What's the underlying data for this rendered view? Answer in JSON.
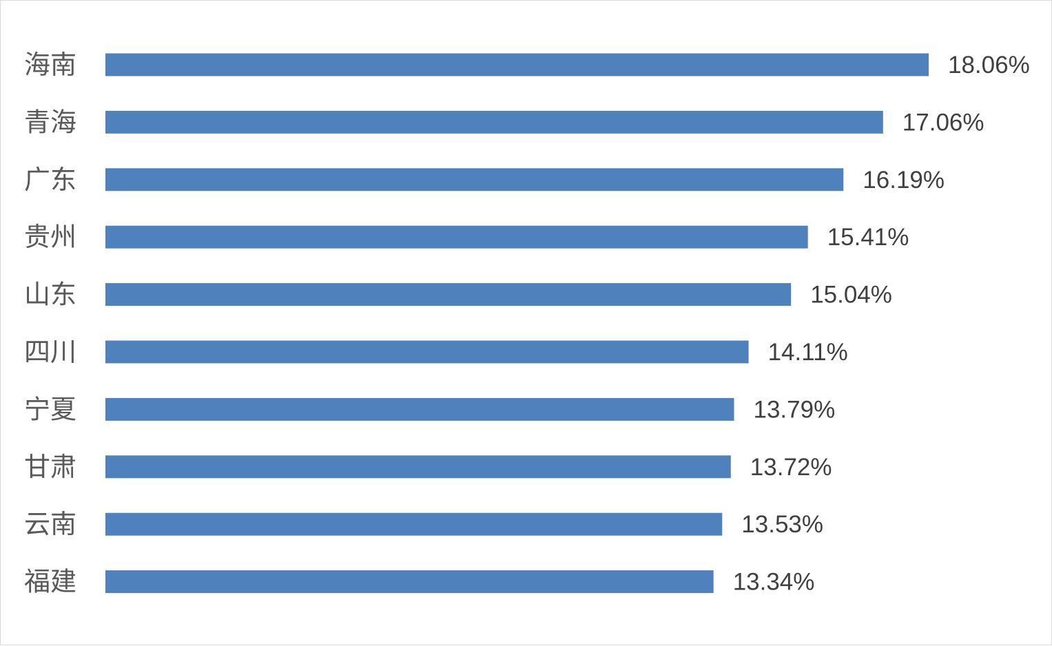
{
  "colors": {
    "bar": "#4f81bd",
    "category_text": "#595959",
    "value_text": "#404040",
    "border": "#d9d9d9",
    "background": "#ffffff"
  },
  "chart_data": {
    "type": "bar",
    "orientation": "horizontal",
    "categories": [
      "海南",
      "青海",
      "广东",
      "贵州",
      "山东",
      "四川",
      "宁夏",
      "甘肃",
      "云南",
      "福建"
    ],
    "values": [
      18.06,
      17.06,
      16.19,
      15.41,
      15.04,
      14.11,
      13.79,
      13.72,
      13.53,
      13.34
    ],
    "data_labels": [
      "18.06%",
      "17.06%",
      "16.19%",
      "15.41%",
      "15.04%",
      "14.11%",
      "13.79%",
      "13.72%",
      "13.53%",
      "13.34%"
    ],
    "value_unit": "%",
    "title": "",
    "xlabel": "",
    "ylabel": "",
    "grid": false,
    "legend": "none",
    "xlim": [
      0,
      18.06
    ]
  }
}
